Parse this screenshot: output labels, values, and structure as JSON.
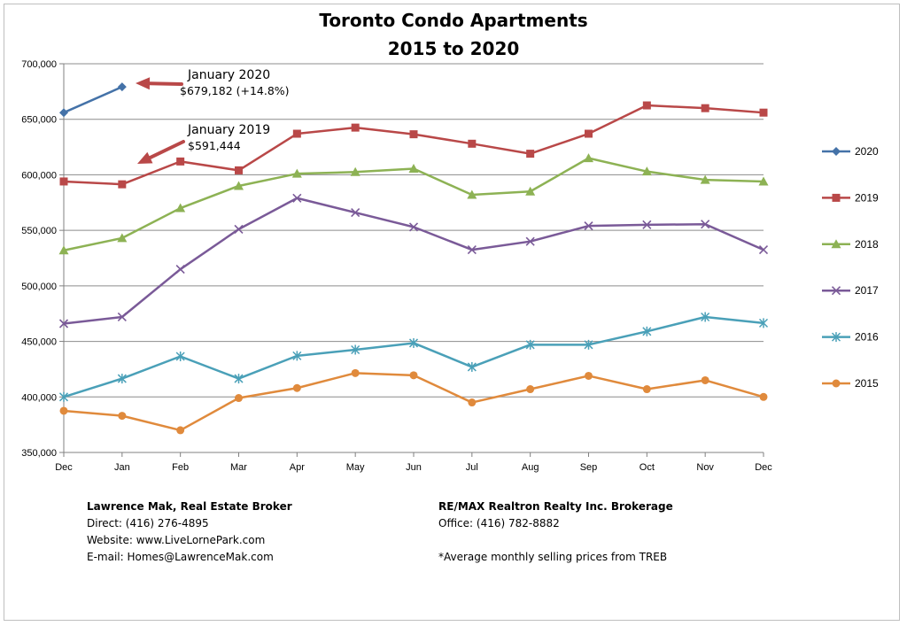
{
  "chart_data": {
    "type": "line",
    "title": [
      "Toronto Condo Apartments",
      "2015 to 2020"
    ],
    "categories": [
      "Dec",
      "Jan",
      "Feb",
      "Mar",
      "Apr",
      "May",
      "Jun",
      "Jul",
      "Aug",
      "Sep",
      "Oct",
      "Nov",
      "Dec"
    ],
    "ylim": [
      350000,
      700000
    ],
    "yticks": [
      350000,
      400000,
      450000,
      500000,
      550000,
      600000,
      650000,
      700000
    ],
    "ytick_labels": [
      "350,000",
      "400,000",
      "450,000",
      "500,000",
      "550,000",
      "600,000",
      "650,000",
      "700,000"
    ],
    "grid": "horizontal",
    "legend_position": "right",
    "series": [
      {
        "name": "2020",
        "color": "#4472A8",
        "marker": "diamond",
        "values": [
          656000,
          679182,
          null,
          null,
          null,
          null,
          null,
          null,
          null,
          null,
          null,
          null,
          null
        ]
      },
      {
        "name": "2019",
        "color": "#B94848",
        "marker": "square",
        "values": [
          594000,
          591444,
          612000,
          604000,
          637000,
          642500,
          636500,
          628000,
          619000,
          637000,
          662500,
          660000,
          656000
        ]
      },
      {
        "name": "2018",
        "color": "#8DB254",
        "marker": "triangle",
        "values": [
          532000,
          543000,
          570000,
          590000,
          601000,
          602500,
          605500,
          582000,
          585000,
          615000,
          603000,
          595500,
          594000
        ]
      },
      {
        "name": "2017",
        "color": "#7A5A98",
        "marker": "x",
        "values": [
          466000,
          472000,
          515000,
          551000,
          579000,
          566000,
          553000,
          532500,
          540000,
          554000,
          555000,
          555500,
          532500
        ]
      },
      {
        "name": "2016",
        "color": "#4AA0B8",
        "marker": "star",
        "values": [
          400000,
          416500,
          436500,
          416500,
          437000,
          442500,
          448500,
          427000,
          447000,
          447000,
          459000,
          472000,
          466500
        ]
      },
      {
        "name": "2015",
        "color": "#E08A3C",
        "marker": "circle",
        "values": [
          387500,
          383000,
          370000,
          399000,
          408000,
          421500,
          419500,
          395000,
          407000,
          419000,
          407000,
          415000,
          400000
        ]
      }
    ],
    "annotations": [
      {
        "lines": [
          "January 2020",
          "$679,182 (+14.8%)"
        ],
        "arrow_color": "#B94848"
      },
      {
        "lines": [
          "January 2019",
          "$591,444"
        ],
        "arrow_color": "#B94848"
      }
    ]
  },
  "footer": {
    "left": {
      "name": "Lawrence Mak, Real Estate Broker",
      "direct": "Direct:  (416) 276-4895",
      "website": "Website:  www.LiveLornePark.com",
      "email": "E-mail:  Homes@LawrenceMak.com"
    },
    "right": {
      "company": "RE/MAX Realtron Realty Inc. Brokerage",
      "office": "Office: (416) 782-8882",
      "note": "*Average monthly selling prices from TREB"
    }
  }
}
